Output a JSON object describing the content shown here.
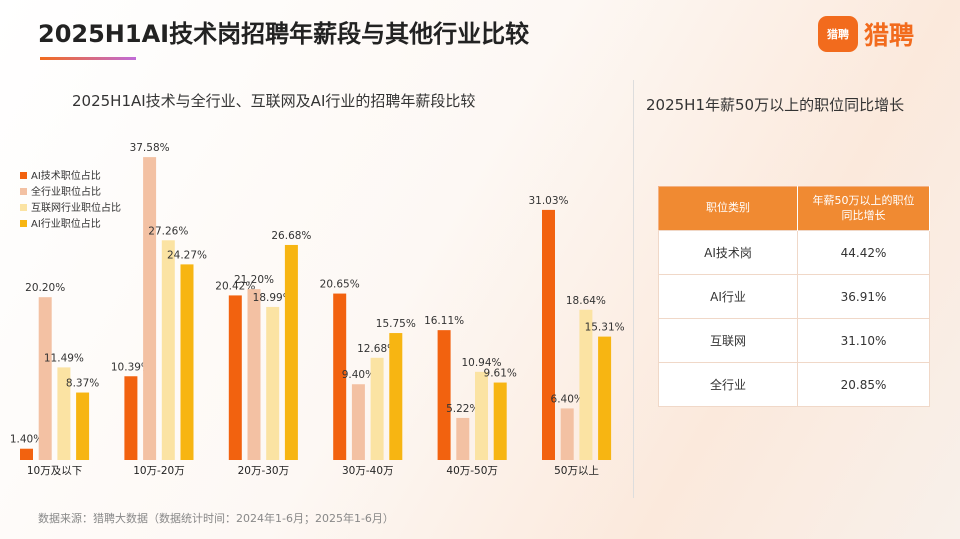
{
  "title": "2025H1AI技术岗招聘年薪段与其他行业比较",
  "logo": {
    "icon_text": "猎聘",
    "text": "猎聘"
  },
  "chart_data": {
    "type": "bar",
    "title": "2025H1AI技术与全行业、互联网及AI行业的招聘年薪段比较",
    "categories": [
      "10万及以下",
      "10万-20万",
      "20万-30万",
      "30万-40万",
      "40万-50万",
      "50万以上"
    ],
    "series": [
      {
        "name": "AI技术职位占比",
        "color": "#f2620f",
        "values": [
          1.4,
          10.39,
          20.42,
          20.65,
          16.11,
          31.03
        ]
      },
      {
        "name": "全行业职位占比",
        "color": "#f3c1a3",
        "values": [
          20.2,
          37.58,
          21.2,
          9.4,
          5.22,
          6.4
        ]
      },
      {
        "name": "互联网行业职位占比",
        "color": "#fbe3a3",
        "values": [
          11.49,
          27.26,
          18.99,
          12.68,
          10.94,
          18.64
        ]
      },
      {
        "name": "AI行业职位占比",
        "color": "#f7b512",
        "values": [
          8.37,
          24.27,
          26.68,
          15.75,
          9.61,
          15.31
        ]
      }
    ],
    "value_format": "%",
    "legend": "top-left",
    "grid": false
  },
  "table": {
    "title": "2025H1年薪50万以上的职位同比增长",
    "headers": [
      "职位类别",
      "年薪50万以上的职位同比增长"
    ],
    "rows": [
      [
        "AI技术岗",
        "44.42%"
      ],
      [
        "AI行业",
        "36.91%"
      ],
      [
        "互联网",
        "31.10%"
      ],
      [
        "全行业",
        "20.85%"
      ]
    ]
  },
  "source": "数据来源：猎聘大数据（数据统计时间：2024年1-6月；2025年1-6月）"
}
